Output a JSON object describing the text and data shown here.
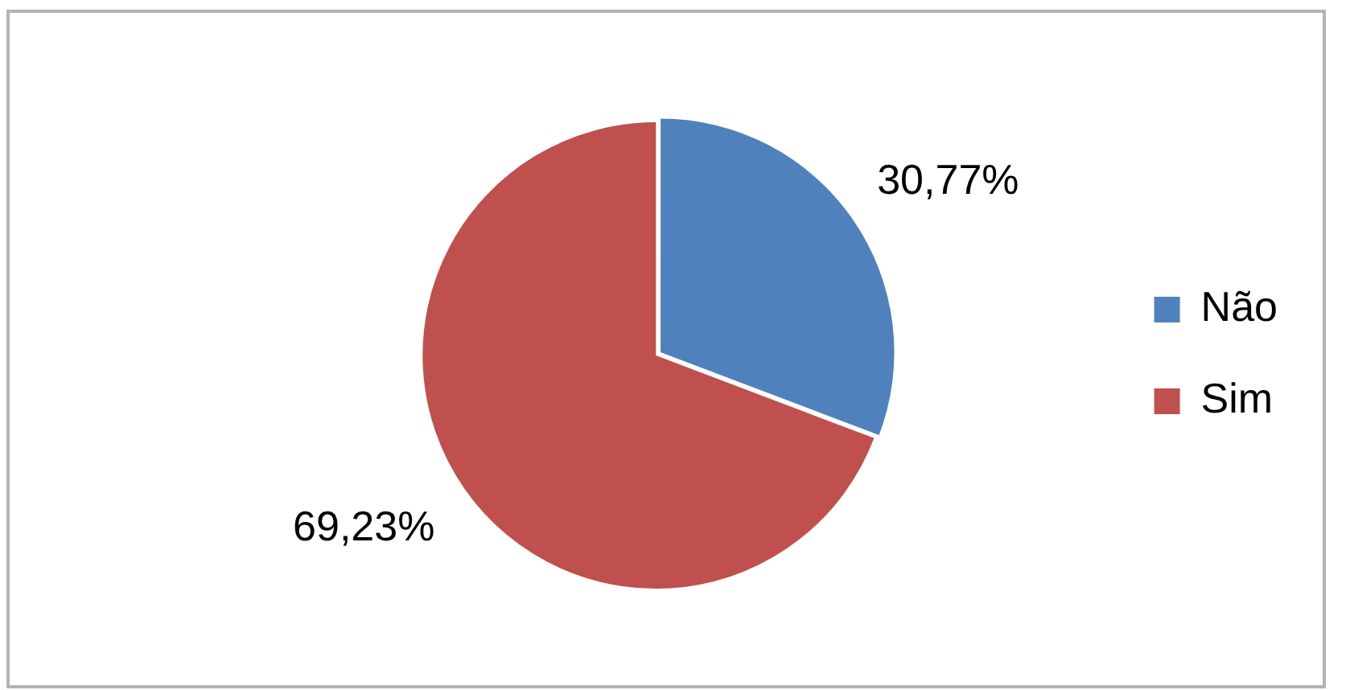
{
  "chart_data": {
    "type": "pie",
    "categories": [
      "Não",
      "Sim"
    ],
    "values": [
      30.77,
      69.23
    ],
    "colors": [
      "#4f81bd",
      "#c0504d"
    ],
    "value_labels": [
      "30,77%",
      "69,23%"
    ],
    "legend": "right"
  }
}
